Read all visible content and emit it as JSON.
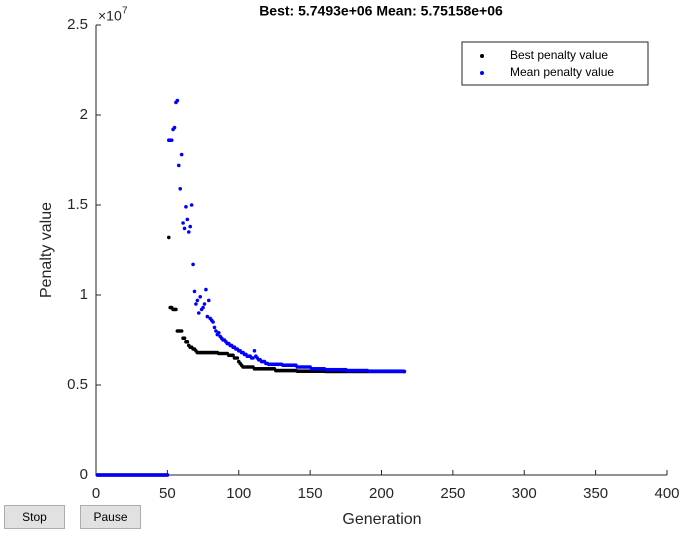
{
  "chart_data": {
    "type": "scatter",
    "title": "Best: 5.7493e+06 Mean: 5.75158e+06",
    "x_label": "Generation",
    "y_label": "Penalty value",
    "y_multiplier": {
      "base": "×10",
      "exponent": "7"
    },
    "xlim": [
      0,
      400
    ],
    "xticks": [
      0,
      50,
      100,
      150,
      200,
      250,
      300,
      350,
      400
    ],
    "ylim": [
      0,
      2.5
    ],
    "yticks": [
      0,
      0.5,
      1,
      1.5,
      2,
      2.5
    ],
    "legend": "northeast",
    "x": [
      1,
      2,
      3,
      4,
      5,
      6,
      7,
      8,
      9,
      10,
      11,
      12,
      13,
      14,
      15,
      16,
      17,
      18,
      19,
      20,
      21,
      22,
      23,
      24,
      25,
      26,
      27,
      28,
      29,
      30,
      31,
      32,
      33,
      34,
      35,
      36,
      37,
      38,
      39,
      40,
      41,
      42,
      43,
      44,
      45,
      46,
      47,
      48,
      49,
      50,
      51,
      52,
      53,
      54,
      55,
      56,
      57,
      58,
      59,
      60,
      61,
      62,
      63,
      64,
      65,
      66,
      67,
      68,
      69,
      70,
      71,
      72,
      73,
      74,
      75,
      76,
      77,
      78,
      79,
      80,
      81,
      82,
      83,
      84,
      85,
      86,
      87,
      88,
      89,
      90,
      91,
      92,
      93,
      94,
      95,
      96,
      97,
      98,
      99,
      100,
      101,
      102,
      103,
      104,
      105,
      106,
      107,
      108,
      109,
      110,
      111,
      112,
      113,
      114,
      115,
      116,
      117,
      118,
      119,
      120,
      121,
      122,
      123,
      124,
      125,
      126,
      127,
      128,
      129,
      130,
      131,
      132,
      133,
      134,
      135,
      136,
      137,
      138,
      139,
      140,
      141,
      142,
      143,
      144,
      145,
      146,
      147,
      148,
      149,
      150,
      151,
      152,
      153,
      154,
      155,
      156,
      157,
      158,
      159,
      160,
      161,
      162,
      163,
      164,
      165,
      166,
      167,
      168,
      169,
      170,
      171,
      172,
      173,
      174,
      175,
      176,
      177,
      178,
      179,
      180,
      181,
      182,
      183,
      184,
      185,
      186,
      187,
      188,
      189,
      190,
      191,
      192,
      193,
      194,
      195,
      196,
      197,
      198,
      199,
      200,
      201,
      202,
      203,
      204,
      205,
      206,
      207,
      208,
      209,
      210,
      211,
      212,
      213,
      214,
      215,
      216
    ],
    "series": [
      {
        "name": "Best penalty value",
        "color": "#000000",
        "values": [
          0,
          0,
          0,
          0,
          0,
          0,
          0,
          0,
          0,
          0,
          0,
          0,
          0,
          0,
          0,
          0,
          0,
          0,
          0,
          0,
          0,
          0,
          0,
          0,
          0,
          0,
          0,
          0,
          0,
          0,
          0,
          0,
          0,
          0,
          0,
          0,
          0,
          0,
          0,
          0,
          0,
          0,
          0,
          0,
          0,
          0,
          0,
          0,
          0,
          0,
          1.32,
          0.93,
          0.93,
          0.92,
          0.92,
          0.92,
          0.8,
          0.8,
          0.8,
          0.8,
          0.76,
          0.76,
          0.74,
          0.74,
          0.72,
          0.71,
          0.71,
          0.7,
          0.7,
          0.69,
          0.68,
          0.68,
          0.68,
          0.68,
          0.68,
          0.68,
          0.68,
          0.68,
          0.68,
          0.68,
          0.68,
          0.68,
          0.68,
          0.68,
          0.68,
          0.675,
          0.675,
          0.675,
          0.675,
          0.675,
          0.675,
          0.675,
          0.665,
          0.665,
          0.665,
          0.665,
          0.65,
          0.65,
          0.65,
          0.63,
          0.62,
          0.61,
          0.6,
          0.6,
          0.6,
          0.6,
          0.6,
          0.6,
          0.6,
          0.6,
          0.59,
          0.59,
          0.59,
          0.59,
          0.59,
          0.59,
          0.59,
          0.59,
          0.59,
          0.59,
          0.59,
          0.59,
          0.59,
          0.59,
          0.59,
          0.58,
          0.58,
          0.58,
          0.58,
          0.58,
          0.58,
          0.58,
          0.58,
          0.58,
          0.58,
          0.58,
          0.58,
          0.58,
          0.58,
          0.58,
          0.577,
          0.577,
          0.577,
          0.577,
          0.577,
          0.577,
          0.577,
          0.577,
          0.577,
          0.577,
          0.577,
          0.577,
          0.577,
          0.577,
          0.577,
          0.577,
          0.577,
          0.577,
          0.577,
          0.577,
          0.575,
          0.575,
          0.575,
          0.575,
          0.575,
          0.575,
          0.575,
          0.575,
          0.575,
          0.575,
          0.575,
          0.575,
          0.575,
          0.575,
          0.575,
          0.575,
          0.575,
          0.575,
          0.575,
          0.575,
          0.575,
          0.575,
          0.575,
          0.575,
          0.575,
          0.575,
          0.575,
          0.575,
          0.575,
          0.575,
          0.575,
          0.575,
          0.575,
          0.575,
          0.575,
          0.575,
          0.575,
          0.575,
          0.575,
          0.575,
          0.575,
          0.575,
          0.575,
          0.575,
          0.575,
          0.575,
          0.575,
          0.575,
          0.575,
          0.575,
          0.575,
          0.575,
          0.575,
          0.575,
          0.575,
          0.57493
        ]
      },
      {
        "name": "Mean penalty value",
        "color": "#0000ff",
        "values": [
          0,
          0,
          0,
          0,
          0,
          0,
          0,
          0,
          0,
          0,
          0,
          0,
          0,
          0,
          0,
          0,
          0,
          0,
          0,
          0,
          0,
          0,
          0,
          0,
          0,
          0,
          0,
          0,
          0,
          0,
          0,
          0,
          0,
          0,
          0,
          0,
          0,
          0,
          0,
          0,
          0,
          0,
          0,
          0,
          0,
          0,
          0,
          0,
          0,
          0,
          1.86,
          1.86,
          1.86,
          1.92,
          1.93,
          2.07,
          2.08,
          1.72,
          1.59,
          1.78,
          1.4,
          1.37,
          1.49,
          1.42,
          1.35,
          1.38,
          1.5,
          1.17,
          1.02,
          0.95,
          0.97,
          0.9,
          0.99,
          0.92,
          0.93,
          0.95,
          1.03,
          0.88,
          0.97,
          0.87,
          0.86,
          0.85,
          0.82,
          0.8,
          0.78,
          0.79,
          0.77,
          0.76,
          0.75,
          0.75,
          0.74,
          0.73,
          0.73,
          0.72,
          0.72,
          0.71,
          0.71,
          0.7,
          0.7,
          0.69,
          0.69,
          0.68,
          0.68,
          0.67,
          0.67,
          0.66,
          0.66,
          0.66,
          0.65,
          0.65,
          0.69,
          0.66,
          0.65,
          0.64,
          0.64,
          0.63,
          0.63,
          0.63,
          0.62,
          0.62,
          0.615,
          0.615,
          0.615,
          0.615,
          0.615,
          0.615,
          0.615,
          0.615,
          0.615,
          0.615,
          0.61,
          0.61,
          0.61,
          0.61,
          0.61,
          0.61,
          0.61,
          0.61,
          0.61,
          0.61,
          0.6,
          0.6,
          0.6,
          0.6,
          0.6,
          0.6,
          0.6,
          0.6,
          0.6,
          0.6,
          0.59,
          0.59,
          0.59,
          0.59,
          0.59,
          0.59,
          0.59,
          0.59,
          0.59,
          0.59,
          0.585,
          0.585,
          0.585,
          0.585,
          0.585,
          0.585,
          0.585,
          0.585,
          0.585,
          0.585,
          0.585,
          0.585,
          0.585,
          0.585,
          0.585,
          0.58,
          0.58,
          0.58,
          0.58,
          0.58,
          0.58,
          0.58,
          0.58,
          0.58,
          0.58,
          0.58,
          0.58,
          0.58,
          0.58,
          0.58,
          0.577,
          0.577,
          0.577,
          0.577,
          0.577,
          0.577,
          0.577,
          0.577,
          0.577,
          0.577,
          0.577,
          0.577,
          0.577,
          0.577,
          0.577,
          0.577,
          0.577,
          0.577,
          0.577,
          0.577,
          0.577,
          0.577,
          0.577,
          0.577,
          0.577,
          0.575158
        ]
      }
    ]
  },
  "ui": {
    "buttons": [
      "Stop",
      "Pause"
    ]
  }
}
